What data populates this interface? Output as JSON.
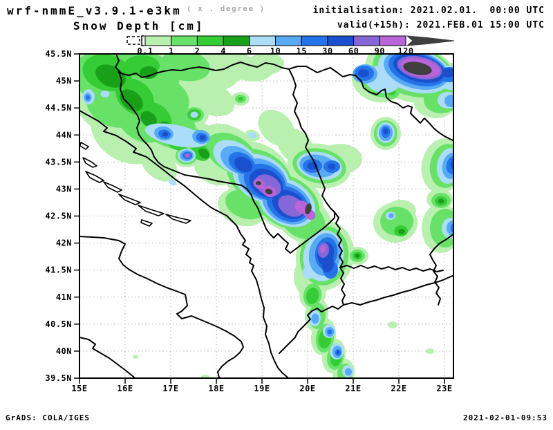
{
  "header": {
    "model": "wrf-nmmE_v3.9.1-e3km",
    "model_note": "( x . degree )",
    "variable": "Snow Depth [cm]",
    "init_line": "initialisation: 2021.02.01.  00:00 UTC",
    "valid_line": "valid(+15h): 2021.FEB.01 15:00 UTC"
  },
  "colorbar": {
    "levels": [
      "0.1",
      "1",
      "2",
      "4",
      "6",
      "10",
      "15",
      "30",
      "60",
      "90",
      "120"
    ],
    "colors": [
      "#b9f0b0",
      "#68e168",
      "#35cc35",
      "#18a018",
      "#abdcf8",
      "#58aaf5",
      "#2473e8",
      "#1a50cd",
      "#8667d8",
      "#b964d8"
    ],
    "overflow_color": "#3f3f3f"
  },
  "axes": {
    "lat_labels": [
      "45.5N",
      "45N",
      "44.5N",
      "44N",
      "43.5N",
      "43N",
      "42.5N",
      "42N",
      "41.5N",
      "41N",
      "40.5N",
      "40N",
      "39.5N"
    ],
    "lon_labels": [
      "15E",
      "16E",
      "17E",
      "18E",
      "19E",
      "20E",
      "21E",
      "22E",
      "23E"
    ]
  },
  "footer": {
    "left": "GrADS: COLA/IGES",
    "right": "2021-02-01-09:53"
  },
  "chart_data": {
    "type": "heatmap",
    "title": "Snow Depth [cm]",
    "model": "wrf-nmmE_v3.9.1-e3km",
    "initialisation": "2021.02.01. 00:00 UTC",
    "valid": "2021.FEB.01 15:00 UTC (+15h)",
    "units": "cm",
    "contour_levels_cm": [
      0.1,
      1,
      2,
      4,
      6,
      10,
      15,
      30,
      60,
      90,
      120
    ],
    "lon_ticks": [
      "15E",
      "16E",
      "17E",
      "18E",
      "19E",
      "20E",
      "21E",
      "22E",
      "23E"
    ],
    "lat_ticks": [
      "39.5N",
      "40N",
      "40.5N",
      "41N",
      "41.5N",
      "42N",
      "42.5N",
      "43N",
      "43.5N",
      "44N",
      "44.5N",
      "45N",
      "45.5N"
    ],
    "legend_position": "top",
    "grid": true
  }
}
